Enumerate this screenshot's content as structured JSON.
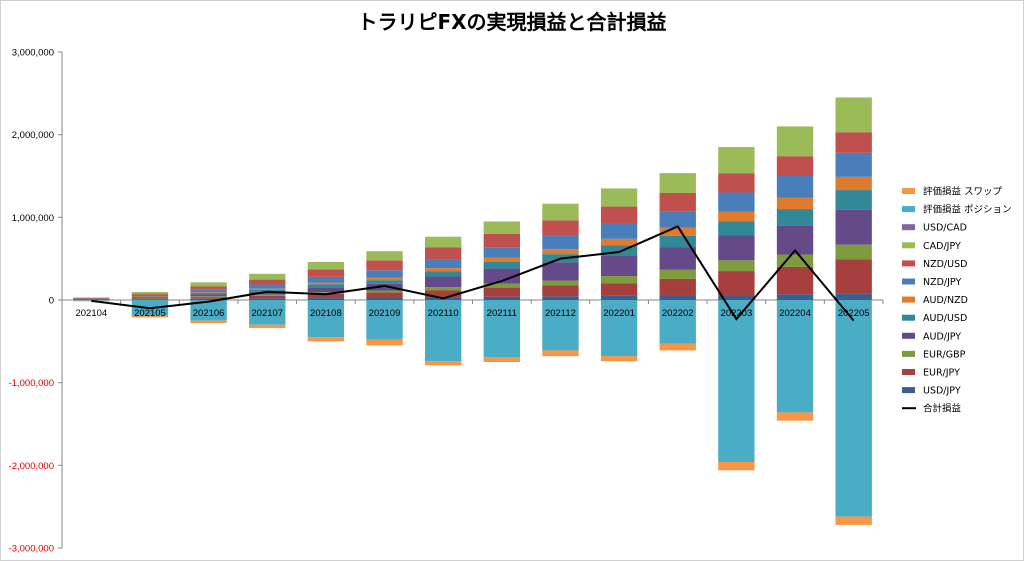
{
  "chart_data": {
    "type": "bar",
    "stacked": true,
    "title": "トラリピFXの実現損益と合計損益",
    "categories": [
      "202104",
      "202105",
      "202106",
      "202107",
      "202108",
      "202109",
      "202110",
      "202111",
      "202112",
      "202201",
      "202202",
      "202203",
      "202204",
      "202205"
    ],
    "ylim": [
      -3000000,
      3000000
    ],
    "yticks": [
      "3,000,000",
      "2,000,000",
      "1,000,000",
      "0",
      "-1,000,000",
      "-2,000,000",
      "-3,000,000"
    ],
    "yticks_values": [
      3000000,
      2000000,
      1000000,
      0,
      -1000000,
      -2000000,
      -3000000
    ],
    "grid": false,
    "legend_position": "right",
    "series": [
      {
        "name": "USD/JPY",
        "color": "#3b5e91",
        "values": [
          5000,
          10000,
          15000,
          20000,
          25000,
          30000,
          35000,
          40000,
          45000,
          50000,
          55000,
          60000,
          70000,
          80000
        ]
      },
      {
        "name": "EUR/JPY",
        "color": "#a63f3d",
        "values": [
          3000,
          10000,
          20000,
          30000,
          50000,
          60000,
          80000,
          110000,
          130000,
          150000,
          200000,
          290000,
          330000,
          410000
        ]
      },
      {
        "name": "EUR/GBP",
        "color": "#7e9b3d",
        "values": [
          2000,
          5000,
          10000,
          15000,
          20000,
          25000,
          40000,
          50000,
          60000,
          90000,
          110000,
          130000,
          150000,
          180000
        ]
      },
      {
        "name": "AUD/JPY",
        "color": "#654a8a",
        "values": [
          3000,
          10000,
          25000,
          35000,
          60000,
          80000,
          130000,
          180000,
          220000,
          250000,
          270000,
          300000,
          350000,
          420000
        ]
      },
      {
        "name": "AUD/USD",
        "color": "#328896",
        "values": [
          3000,
          8000,
          15000,
          25000,
          35000,
          45000,
          60000,
          80000,
          100000,
          120000,
          140000,
          170000,
          200000,
          240000
        ]
      },
      {
        "name": "AUD/NZD",
        "color": "#e07b2d",
        "values": [
          2000,
          4000,
          8000,
          12000,
          20000,
          30000,
          40000,
          50000,
          60000,
          80000,
          100000,
          120000,
          140000,
          160000
        ]
      },
      {
        "name": "NZD/JPY",
        "color": "#4a7ebb",
        "values": [
          4000,
          15000,
          30000,
          50000,
          70000,
          90000,
          110000,
          130000,
          160000,
          180000,
          200000,
          230000,
          260000,
          290000
        ]
      },
      {
        "name": "NZD/USD",
        "color": "#c0504d",
        "values": [
          4000,
          15000,
          40000,
          60000,
          90000,
          120000,
          140000,
          160000,
          190000,
          210000,
          220000,
          230000,
          240000,
          250000
        ]
      },
      {
        "name": "CAD/JPY",
        "color": "#9bbb59",
        "values": [
          5000,
          20000,
          50000,
          70000,
          90000,
          110000,
          130000,
          150000,
          200000,
          220000,
          240000,
          320000,
          360000,
          420000
        ]
      },
      {
        "name": "USD/CAD",
        "color": "#8064a2",
        "values": [
          0,
          0,
          0,
          0,
          0,
          0,
          0,
          0,
          0,
          0,
          0,
          0,
          0,
          0
        ]
      },
      {
        "name": "評価損益 ポジション",
        "color": "#4bacc6",
        "values": [
          -10000,
          -190000,
          -250000,
          -300000,
          -450000,
          -480000,
          -740000,
          -690000,
          -610000,
          -680000,
          -530000,
          -1960000,
          -1360000,
          -2620000
        ]
      },
      {
        "name": "評価損益 スワップ",
        "color": "#f79646",
        "values": [
          -5000,
          -20000,
          -30000,
          -40000,
          -50000,
          -70000,
          -50000,
          -60000,
          -70000,
          -60000,
          -80000,
          -100000,
          -100000,
          -100000
        ]
      }
    ],
    "line": {
      "name": "合計損益",
      "color": "#000000",
      "values": [
        -10000,
        -100000,
        -20000,
        100000,
        70000,
        170000,
        20000,
        230000,
        500000,
        580000,
        890000,
        -230000,
        600000,
        -250000
      ]
    }
  }
}
